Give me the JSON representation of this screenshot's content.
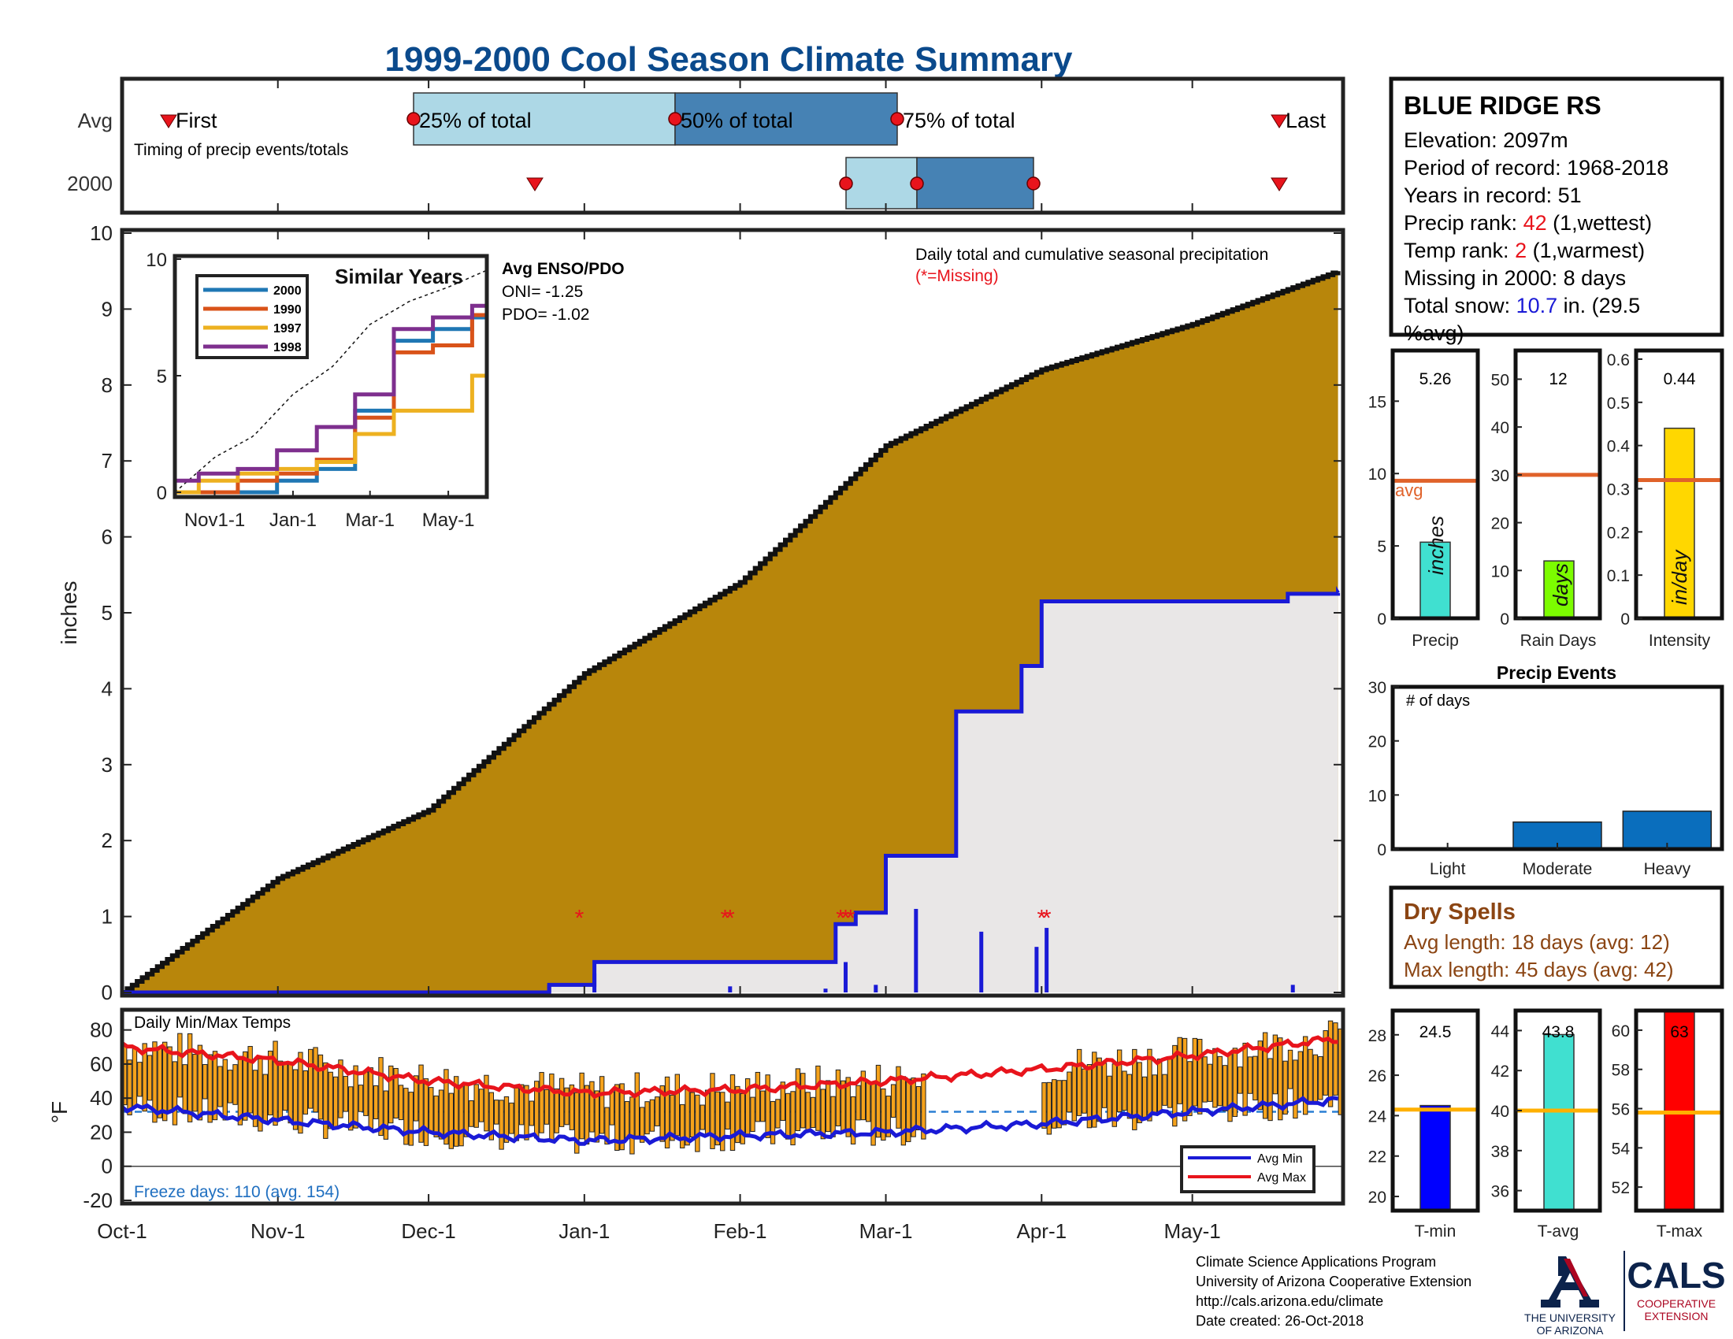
{
  "title": "1999-2000 Cool Season Climate Summary",
  "station": {
    "name": "BLUE RIDGE RS",
    "elevation": "Elevation: 2097m",
    "period": "Period of record: 1968-2018",
    "years": "Years in record: 51",
    "precip_rank_label": "Precip rank: ",
    "precip_rank_value": "42",
    "precip_rank_note": " (1,wettest)",
    "temp_rank_label": "Temp rank: ",
    "temp_rank_value": "2",
    "temp_rank_note": " (1,warmest)",
    "missing": "Missing in 2000: 8 days",
    "snow_label": "Total snow: ",
    "snow_value": "10.7",
    "snow_note": " in. (29.5",
    "snow_note2": "%avg)"
  },
  "timing": {
    "row_avg": "Avg",
    "row_year": "2000",
    "caption": "Timing of precip events/totals",
    "first": "First",
    "q25": "25% of total",
    "q50": "50% of total",
    "q75": "75% of total",
    "last": "Last"
  },
  "main_chart": {
    "ylabel": "inches",
    "annotation": "Daily total and cumulative seasonal precipitation",
    "missing_note": "(*=Missing)",
    "enso_title": "Avg ENSO/PDO",
    "oni": "ONI= -1.25",
    "pdo": "PDO= -1.02",
    "yticks": [
      "0",
      "1",
      "2",
      "3",
      "4",
      "5",
      "6",
      "7",
      "8",
      "9",
      "10"
    ],
    "xticks": [
      "Oct-1",
      "Nov-1",
      "Dec-1",
      "Jan-1",
      "Feb-1",
      "Mar-1",
      "Apr-1",
      "May-1"
    ]
  },
  "inset": {
    "title": "Similar Years",
    "legend": [
      "2000",
      "1990",
      "1997",
      "1998"
    ],
    "yticks": [
      "0",
      "5",
      "10"
    ],
    "xticks": [
      "Nov1-1",
      "Jan-1",
      "Mar-1",
      "May-1"
    ]
  },
  "temp_chart": {
    "label": "Daily Min/Max Temps",
    "ylabel": "°F",
    "freeze": "Freeze days: 110 (avg. 154)",
    "legend_min": "Avg Min",
    "legend_max": "Avg Max",
    "yticks": [
      "80",
      "60",
      "40",
      "20",
      "0",
      "-20"
    ]
  },
  "mini_precip": {
    "precip_value": "5.26",
    "precip_unit": "inches",
    "precip_label": "Precip",
    "avg_label": "avg",
    "days_value": "12",
    "days_unit": "days",
    "days_label": "Rain Days",
    "int_value": "0.44",
    "int_unit": "in/day",
    "int_label": "Intensity",
    "precip_yticks": [
      "15",
      "10",
      "5",
      "0"
    ],
    "days_yticks": [
      "50",
      "40",
      "30",
      "20",
      "10",
      "0"
    ],
    "int_yticks": [
      "0.6",
      "0.5",
      "0.4",
      "0.3",
      "0.2",
      "0.1",
      "0"
    ]
  },
  "events": {
    "title": "Precip Events",
    "ylabel": "# of days",
    "categories": [
      "Light",
      "Moderate",
      "Heavy"
    ],
    "yticks": [
      "30",
      "20",
      "10",
      "0"
    ]
  },
  "dry_spells": {
    "title": "Dry Spells",
    "avg": "Avg length: 18 days (avg: 12)",
    "max": "Max length: 45 days (avg: 42)"
  },
  "mini_temp": {
    "tmin_value": "24.5",
    "tmin_label": "T-min",
    "tmin_yticks": [
      "28",
      "26",
      "24",
      "22",
      "20"
    ],
    "tavg_value": "43.8",
    "tavg_label": "T-avg",
    "tavg_yticks": [
      "44",
      "42",
      "40",
      "38",
      "36"
    ],
    "tmax_value": "63",
    "tmax_label": "T-max",
    "tmax_yticks": [
      "60",
      "58",
      "56",
      "54",
      "52"
    ]
  },
  "footer": {
    "line1": "Climate Science Applications Program",
    "line2": "University of Arizona Cooperative Extension",
    "line3": "http://cals.arizona.edu/climate",
    "line4": " Date created: 26-Oct-2018",
    "ua_line1": "THE UNIVERSITY",
    "ua_line2": "OF ARIZONA",
    "cals": "CALS",
    "cals_sub1": "COOPERATIVE",
    "cals_sub2": "EXTENSION"
  },
  "colors": {
    "title": "#0b4a8c",
    "brown": "#b8860b",
    "grey": "#e9e7e7",
    "blue": "#1a1ad6",
    "red": "#e8141c",
    "dry": "#8b4513",
    "q_light": "#add8e6",
    "q_dark": "#4682b4",
    "orange_line": "#e0622a",
    "gold_line": "#ffb000"
  },
  "chart_data": [
    {
      "type": "area",
      "title": "Daily total and cumulative seasonal precipitation",
      "ylabel": "inches",
      "ylim": [
        0,
        10
      ],
      "series": [
        {
          "name": "Avg",
          "x": [
            "Oct-1",
            "Nov-1",
            "Dec-1",
            "Jan-1",
            "Feb-1",
            "Mar-1",
            "Apr-1",
            "May-1",
            "May-31"
          ],
          "values": [
            0,
            1.5,
            2.4,
            4.2,
            5.4,
            7.2,
            8.2,
            8.8,
            9.5
          ]
        },
        {
          "name": "2000",
          "x": [
            "Oct-1",
            "Dec-25",
            "Jan-3",
            "Jan-29",
            "Feb-20",
            "Feb-24",
            "Mar-1",
            "Mar-15",
            "Mar-28",
            "Apr-1",
            "May-20",
            "May-31"
          ],
          "values": [
            0,
            0.1,
            0.4,
            0.4,
            0.9,
            1.05,
            1.8,
            3.7,
            4.3,
            5.15,
            5.25,
            5.26
          ]
        }
      ],
      "missing_days": [
        "Dec-31",
        "Jan-29",
        "Jan-30",
        "Feb-21",
        "Feb-22",
        "Feb-23",
        "Apr-1",
        "Apr-2"
      ],
      "daily_precip": [
        {
          "x": "Dec-25",
          "value": 0.1
        },
        {
          "x": "Jan-3",
          "value": 0.25
        },
        {
          "x": "Jan-30",
          "value": 0.08
        },
        {
          "x": "Feb-18",
          "value": 0.05
        },
        {
          "x": "Feb-22",
          "value": 0.4
        },
        {
          "x": "Feb-28",
          "value": 0.1
        },
        {
          "x": "Mar-7",
          "value": 1.1
        },
        {
          "x": "Mar-20",
          "value": 0.8
        },
        {
          "x": "Mar-31",
          "value": 0.6
        },
        {
          "x": "Apr-2",
          "value": 0.85
        },
        {
          "x": "May-21",
          "value": 0.1
        }
      ]
    },
    {
      "type": "line",
      "title": "Similar Years",
      "x": [
        "Oct-1",
        "Nov-1",
        "Dec-1",
        "Jan-1",
        "Feb-1",
        "Mar-1",
        "Apr-1",
        "May-1",
        "Jun-1"
      ],
      "ylim": [
        0,
        10
      ],
      "series": [
        {
          "name": "2000",
          "values": [
            0,
            0,
            0,
            0.5,
            1.0,
            3.5,
            6.5,
            7.0,
            7.5
          ]
        },
        {
          "name": "1990",
          "values": [
            0,
            0,
            0.5,
            0.8,
            1.4,
            3.2,
            6.0,
            6.3,
            7.6
          ]
        },
        {
          "name": "1997",
          "values": [
            0,
            0.5,
            0.8,
            1.0,
            1.3,
            2.5,
            3.5,
            3.5,
            5.0
          ]
        },
        {
          "name": "1998",
          "values": [
            0.5,
            0.8,
            1.0,
            1.8,
            2.8,
            4.2,
            7.0,
            7.5,
            8.0
          ]
        }
      ]
    },
    {
      "type": "bar",
      "title": "Daily Min/Max Temps",
      "ylabel": "°F",
      "ylim": [
        -20,
        90
      ],
      "avg_min": {
        "x": [
          "Oct-1",
          "Nov-1",
          "Dec-1",
          "Jan-1",
          "Feb-1",
          "Mar-1",
          "Apr-1",
          "May-1",
          "May-31"
        ],
        "values": [
          35,
          27,
          20,
          15,
          18,
          20,
          25,
          32,
          39
        ]
      },
      "avg_max": {
        "x": [
          "Oct-1",
          "Nov-1",
          "Dec-1",
          "Jan-1",
          "Feb-1",
          "Mar-1",
          "Apr-1",
          "May-1",
          "May-31"
        ],
        "values": [
          70,
          62,
          50,
          43,
          45,
          50,
          57,
          65,
          75
        ]
      },
      "freeze_line": 32
    },
    {
      "type": "bar",
      "categories": [
        "Precip",
        "Rain Days",
        "Intensity"
      ],
      "values": [
        5.26,
        12,
        0.44
      ],
      "averages": [
        9.5,
        30,
        0.32
      ]
    },
    {
      "type": "bar",
      "title": "Precip Events",
      "ylabel": "# of days",
      "categories": [
        "Light",
        "Moderate",
        "Heavy"
      ],
      "values": [
        0,
        5,
        7
      ],
      "ylim": [
        0,
        30
      ]
    },
    {
      "type": "bar",
      "categories": [
        "T-min",
        "T-avg",
        "T-max"
      ],
      "values": [
        24.5,
        43.8,
        63
      ],
      "averages": [
        24.3,
        40,
        55.8
      ]
    }
  ]
}
